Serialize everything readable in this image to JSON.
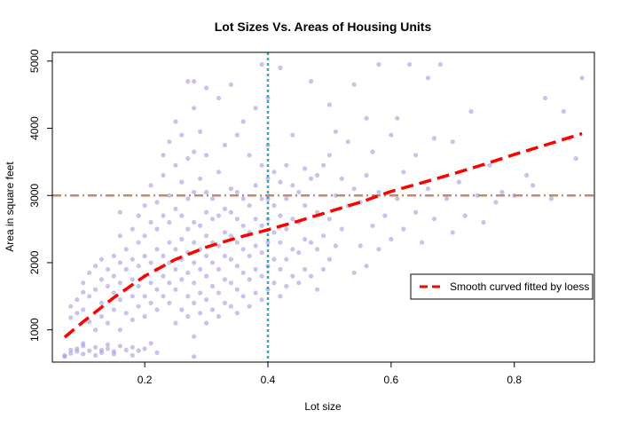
{
  "chart_data": {
    "type": "scatter",
    "title": "Lot Sizes Vs. Areas of Housing Units",
    "xlabel": "Lot size",
    "ylabel": "Area in square feet",
    "xlim": [
      0.05,
      0.93
    ],
    "ylim": [
      520,
      5130
    ],
    "xticks": [
      0.2,
      0.4,
      0.6,
      0.8
    ],
    "yticks": [
      1000,
      2000,
      3000,
      4000,
      5000
    ],
    "grid": false,
    "legend": {
      "placement": "right",
      "entries": [
        {
          "label": "Smooth curved fitted by loess",
          "color": "#ff0000",
          "style": "dashed"
        }
      ]
    },
    "reference_lines": [
      {
        "orientation": "vertical",
        "x": 0.4,
        "color": "#2fa8c8",
        "style": "dotted"
      },
      {
        "orientation": "horizontal",
        "y": 3000,
        "color": "#c8866a",
        "style": "dot-dash"
      }
    ],
    "loess_curve": {
      "x": [
        0.07,
        0.1,
        0.15,
        0.2,
        0.25,
        0.3,
        0.35,
        0.4,
        0.45,
        0.5,
        0.55,
        0.6,
        0.65,
        0.7,
        0.75,
        0.8,
        0.85,
        0.91
      ],
      "y": [
        890,
        1120,
        1480,
        1800,
        2050,
        2230,
        2370,
        2490,
        2620,
        2760,
        2900,
        3060,
        3190,
        3320,
        3460,
        3610,
        3750,
        3920
      ]
    },
    "point_color": "#9c8fe0",
    "points": [
      [
        0.07,
        600
      ],
      [
        0.07,
        620
      ],
      [
        0.08,
        650
      ],
      [
        0.08,
        700
      ],
      [
        0.09,
        680
      ],
      [
        0.09,
        720
      ],
      [
        0.1,
        640
      ],
      [
        0.1,
        760
      ],
      [
        0.1,
        800
      ],
      [
        0.11,
        690
      ],
      [
        0.12,
        620
      ],
      [
        0.12,
        740
      ],
      [
        0.13,
        700
      ],
      [
        0.13,
        660
      ],
      [
        0.14,
        780
      ],
      [
        0.14,
        720
      ],
      [
        0.15,
        680
      ],
      [
        0.15,
        640
      ],
      [
        0.16,
        760
      ],
      [
        0.17,
        700
      ],
      [
        0.18,
        620
      ],
      [
        0.18,
        740
      ],
      [
        0.19,
        690
      ],
      [
        0.2,
        720
      ],
      [
        0.21,
        800
      ],
      [
        0.22,
        660
      ],
      [
        0.08,
        1180
      ],
      [
        0.08,
        1350
      ],
      [
        0.09,
        1250
      ],
      [
        0.09,
        1450
      ],
      [
        0.1,
        1300
      ],
      [
        0.1,
        1560
      ],
      [
        0.1,
        1700
      ],
      [
        0.11,
        1120
      ],
      [
        0.11,
        1500
      ],
      [
        0.11,
        1850
      ],
      [
        0.12,
        1000
      ],
      [
        0.12,
        1600
      ],
      [
        0.12,
        1950
      ],
      [
        0.13,
        1200
      ],
      [
        0.13,
        1400
      ],
      [
        0.13,
        1750
      ],
      [
        0.13,
        2050
      ],
      [
        0.14,
        1100
      ],
      [
        0.14,
        1650
      ],
      [
        0.14,
        1900
      ],
      [
        0.15,
        1300
      ],
      [
        0.15,
        1550
      ],
      [
        0.15,
        1800
      ],
      [
        0.15,
        2100
      ],
      [
        0.16,
        1000
      ],
      [
        0.16,
        1450
      ],
      [
        0.16,
        1700
      ],
      [
        0.16,
        2000
      ],
      [
        0.16,
        2400
      ],
      [
        0.16,
        2750
      ],
      [
        0.17,
        1250
      ],
      [
        0.17,
        1600
      ],
      [
        0.17,
        1900
      ],
      [
        0.17,
        2200
      ],
      [
        0.18,
        1150
      ],
      [
        0.18,
        1500
      ],
      [
        0.18,
        1750
      ],
      [
        0.18,
        2050
      ],
      [
        0.18,
        2500
      ],
      [
        0.19,
        1350
      ],
      [
        0.19,
        1650
      ],
      [
        0.19,
        1950
      ],
      [
        0.19,
        2300
      ],
      [
        0.19,
        2700
      ],
      [
        0.2,
        1200
      ],
      [
        0.2,
        1500
      ],
      [
        0.2,
        1800
      ],
      [
        0.2,
        2100
      ],
      [
        0.2,
        2400
      ],
      [
        0.2,
        2850
      ],
      [
        0.21,
        1400
      ],
      [
        0.21,
        1700
      ],
      [
        0.21,
        2000
      ],
      [
        0.21,
        2600
      ],
      [
        0.21,
        3150
      ],
      [
        0.22,
        1300
      ],
      [
        0.22,
        1600
      ],
      [
        0.22,
        1900
      ],
      [
        0.22,
        2200
      ],
      [
        0.22,
        2500
      ],
      [
        0.22,
        2900
      ],
      [
        0.23,
        1500
      ],
      [
        0.23,
        1800
      ],
      [
        0.23,
        2100
      ],
      [
        0.23,
        2700
      ],
      [
        0.23,
        3300
      ],
      [
        0.23,
        3600
      ],
      [
        0.24,
        1400
      ],
      [
        0.24,
        1700
      ],
      [
        0.24,
        2000
      ],
      [
        0.24,
        2300
      ],
      [
        0.24,
        2600
      ],
      [
        0.24,
        3000
      ],
      [
        0.24,
        3800
      ],
      [
        0.25,
        1100
      ],
      [
        0.25,
        1600
      ],
      [
        0.25,
        1900
      ],
      [
        0.25,
        2200
      ],
      [
        0.25,
        2800
      ],
      [
        0.25,
        3450
      ],
      [
        0.25,
        4100
      ],
      [
        0.26,
        1300
      ],
      [
        0.26,
        1750
      ],
      [
        0.26,
        2050
      ],
      [
        0.26,
        2350
      ],
      [
        0.26,
        2700
      ],
      [
        0.26,
        3200
      ],
      [
        0.26,
        3900
      ],
      [
        0.27,
        1200
      ],
      [
        0.27,
        1500
      ],
      [
        0.27,
        1850
      ],
      [
        0.27,
        2150
      ],
      [
        0.27,
        2500
      ],
      [
        0.27,
        2950
      ],
      [
        0.27,
        3550
      ],
      [
        0.27,
        4700
      ],
      [
        0.28,
        600
      ],
      [
        0.28,
        900
      ],
      [
        0.28,
        1400
      ],
      [
        0.28,
        1700
      ],
      [
        0.28,
        2000
      ],
      [
        0.28,
        2300
      ],
      [
        0.28,
        2600
      ],
      [
        0.28,
        3050
      ],
      [
        0.28,
        3650
      ],
      [
        0.28,
        4300
      ],
      [
        0.28,
        4700
      ],
      [
        0.29,
        1250
      ],
      [
        0.29,
        1550
      ],
      [
        0.29,
        1900
      ],
      [
        0.29,
        2200
      ],
      [
        0.29,
        2550
      ],
      [
        0.29,
        3250
      ],
      [
        0.29,
        3950
      ],
      [
        0.3,
        1100
      ],
      [
        0.3,
        1450
      ],
      [
        0.3,
        1800
      ],
      [
        0.3,
        2100
      ],
      [
        0.3,
        2400
      ],
      [
        0.3,
        2750
      ],
      [
        0.3,
        3050
      ],
      [
        0.3,
        3600
      ],
      [
        0.3,
        4600
      ],
      [
        0.31,
        1300
      ],
      [
        0.31,
        1650
      ],
      [
        0.31,
        2000
      ],
      [
        0.31,
        2300
      ],
      [
        0.31,
        2650
      ],
      [
        0.31,
        2950
      ],
      [
        0.32,
        1200
      ],
      [
        0.32,
        1550
      ],
      [
        0.32,
        1900
      ],
      [
        0.32,
        2250
      ],
      [
        0.32,
        2700
      ],
      [
        0.32,
        3350
      ],
      [
        0.32,
        4450
      ],
      [
        0.33,
        1400
      ],
      [
        0.33,
        1750
      ],
      [
        0.33,
        2100
      ],
      [
        0.33,
        2450
      ],
      [
        0.33,
        2800
      ],
      [
        0.33,
        3750
      ],
      [
        0.34,
        1350
      ],
      [
        0.34,
        1700
      ],
      [
        0.34,
        2050
      ],
      [
        0.34,
        2400
      ],
      [
        0.34,
        2750
      ],
      [
        0.34,
        3100
      ],
      [
        0.34,
        4650
      ],
      [
        0.35,
        1250
      ],
      [
        0.35,
        1600
      ],
      [
        0.35,
        1950
      ],
      [
        0.35,
        2300
      ],
      [
        0.35,
        2650
      ],
      [
        0.35,
        3050
      ],
      [
        0.35,
        3900
      ],
      [
        0.36,
        1500
      ],
      [
        0.36,
        1850
      ],
      [
        0.36,
        2200
      ],
      [
        0.36,
        2550
      ],
      [
        0.36,
        2950
      ],
      [
        0.36,
        4100
      ],
      [
        0.37,
        1350
      ],
      [
        0.37,
        1750
      ],
      [
        0.37,
        2100
      ],
      [
        0.37,
        2450
      ],
      [
        0.37,
        2850
      ],
      [
        0.37,
        3600
      ],
      [
        0.38,
        1550
      ],
      [
        0.38,
        1900
      ],
      [
        0.38,
        2250
      ],
      [
        0.38,
        2650
      ],
      [
        0.38,
        3150
      ],
      [
        0.38,
        4300
      ],
      [
        0.39,
        1450
      ],
      [
        0.39,
        1800
      ],
      [
        0.39,
        2150
      ],
      [
        0.39,
        2550
      ],
      [
        0.39,
        2950
      ],
      [
        0.39,
        3450
      ],
      [
        0.39,
        4950
      ],
      [
        0.4,
        1600
      ],
      [
        0.4,
        1950
      ],
      [
        0.4,
        2300
      ],
      [
        0.4,
        2650
      ],
      [
        0.4,
        2950
      ],
      [
        0.4,
        3250
      ],
      [
        0.4,
        3750
      ],
      [
        0.4,
        4450
      ],
      [
        0.41,
        1700
      ],
      [
        0.41,
        2050
      ],
      [
        0.41,
        2450
      ],
      [
        0.41,
        2850
      ],
      [
        0.41,
        3350
      ],
      [
        0.42,
        1500
      ],
      [
        0.42,
        1900
      ],
      [
        0.42,
        2300
      ],
      [
        0.42,
        2700
      ],
      [
        0.42,
        3200
      ],
      [
        0.42,
        4900
      ],
      [
        0.43,
        1650
      ],
      [
        0.43,
        2050
      ],
      [
        0.43,
        2500
      ],
      [
        0.43,
        2950
      ],
      [
        0.43,
        3450
      ],
      [
        0.44,
        1800
      ],
      [
        0.44,
        2200
      ],
      [
        0.44,
        2650
      ],
      [
        0.44,
        3150
      ],
      [
        0.44,
        3900
      ],
      [
        0.45,
        1700
      ],
      [
        0.45,
        2150
      ],
      [
        0.45,
        2600
      ],
      [
        0.45,
        3050
      ],
      [
        0.46,
        1900
      ],
      [
        0.46,
        2350
      ],
      [
        0.46,
        2850
      ],
      [
        0.46,
        3400
      ],
      [
        0.47,
        1800
      ],
      [
        0.47,
        2300
      ],
      [
        0.47,
        3250
      ],
      [
        0.47,
        4700
      ],
      [
        0.48,
        1600
      ],
      [
        0.48,
        2200
      ],
      [
        0.48,
        2750
      ],
      [
        0.48,
        3300
      ],
      [
        0.49,
        1900
      ],
      [
        0.49,
        2400
      ],
      [
        0.49,
        3450
      ],
      [
        0.5,
        2050
      ],
      [
        0.5,
        2650
      ],
      [
        0.5,
        3600
      ],
      [
        0.5,
        4350
      ],
      [
        0.51,
        2250
      ],
      [
        0.51,
        3000
      ],
      [
        0.51,
        3950
      ],
      [
        0.52,
        2500
      ],
      [
        0.52,
        3250
      ],
      [
        0.53,
        2850
      ],
      [
        0.53,
        3800
      ],
      [
        0.54,
        1850
      ],
      [
        0.54,
        3100
      ],
      [
        0.54,
        4650
      ],
      [
        0.55,
        2250
      ],
      [
        0.55,
        2900
      ],
      [
        0.56,
        1950
      ],
      [
        0.56,
        3300
      ],
      [
        0.56,
        4150
      ],
      [
        0.57,
        2550
      ],
      [
        0.57,
        3650
      ],
      [
        0.58,
        2200
      ],
      [
        0.58,
        3050
      ],
      [
        0.58,
        4950
      ],
      [
        0.59,
        2700
      ],
      [
        0.6,
        2350
      ],
      [
        0.6,
        3900
      ],
      [
        0.61,
        2950
      ],
      [
        0.61,
        4150
      ],
      [
        0.62,
        2500
      ],
      [
        0.62,
        3350
      ],
      [
        0.63,
        4950
      ],
      [
        0.64,
        2750
      ],
      [
        0.64,
        3600
      ],
      [
        0.65,
        2300
      ],
      [
        0.66,
        3100
      ],
      [
        0.66,
        4750
      ],
      [
        0.67,
        2650
      ],
      [
        0.67,
        3850
      ],
      [
        0.68,
        4950
      ],
      [
        0.69,
        2950
      ],
      [
        0.7,
        2450
      ],
      [
        0.7,
        3800
      ],
      [
        0.71,
        3200
      ],
      [
        0.72,
        2700
      ],
      [
        0.73,
        4250
      ],
      [
        0.74,
        3000
      ],
      [
        0.75,
        2600
      ],
      [
        0.76,
        3450
      ],
      [
        0.77,
        2900
      ],
      [
        0.78,
        3050
      ],
      [
        0.8,
        3000
      ],
      [
        0.82,
        3300
      ],
      [
        0.83,
        3150
      ],
      [
        0.85,
        4450
      ],
      [
        0.86,
        2950
      ],
      [
        0.88,
        4250
      ],
      [
        0.89,
        3850
      ],
      [
        0.9,
        3550
      ],
      [
        0.91,
        4750
      ]
    ]
  }
}
